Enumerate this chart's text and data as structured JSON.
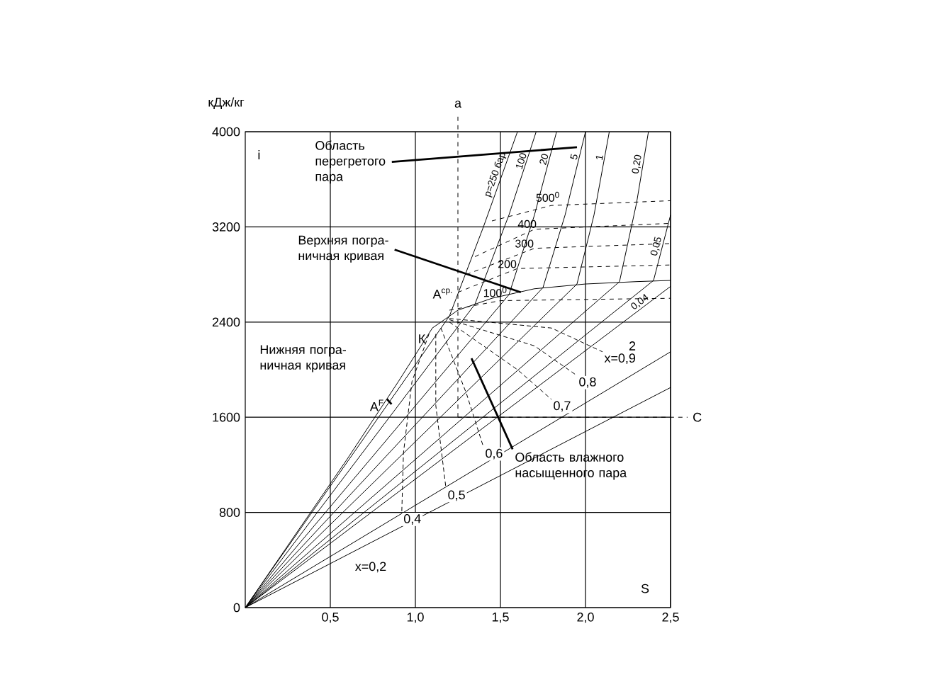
{
  "chart_data": {
    "type": "line",
    "xlabel": "S",
    "ylabel": "кДж/кг",
    "xlim": [
      0,
      2.5
    ],
    "ylim": [
      0,
      4000
    ],
    "xticks": [
      {
        "value": 0.5,
        "label": "0,5"
      },
      {
        "value": 1.0,
        "label": "1,0"
      },
      {
        "value": 1.5,
        "label": "1,5"
      },
      {
        "value": 2.0,
        "label": "2,0"
      },
      {
        "value": 2.5,
        "label": "2,5"
      }
    ],
    "yticks": [
      0,
      800,
      1600,
      2400,
      3200,
      4000
    ],
    "grid": true,
    "series": [
      {
        "color": "#000000",
        "line_style": "solid",
        "x": [
          0,
          0.6,
          0.9,
          1.1,
          1.25,
          1.45,
          1.7,
          2.0,
          2.3,
          2.5
        ],
        "values": [
          0,
          1250,
          1900,
          2350,
          2500,
          2600,
          2680,
          2720,
          2740,
          2750
        ]
      },
      {
        "name": "p=250 бар",
        "color": "#000000",
        "line_style": "solid",
        "x": [
          0,
          1.2,
          1.4,
          1.6
        ],
        "values": [
          0,
          2450,
          3200,
          4000
        ]
      },
      {
        "name": "100",
        "color": "#000000",
        "line_style": "solid",
        "x": [
          0,
          1.35,
          1.55,
          1.71
        ],
        "values": [
          0,
          2550,
          3300,
          4000
        ]
      },
      {
        "name": "20",
        "color": "#000000",
        "line_style": "solid",
        "x": [
          0,
          1.55,
          1.7,
          1.83
        ],
        "values": [
          0,
          2630,
          3300,
          4000
        ]
      },
      {
        "name": "5",
        "color": "#000000",
        "line_style": "solid",
        "x": [
          0,
          1.75,
          1.88,
          2.0
        ],
        "values": [
          0,
          2690,
          3300,
          4000
        ]
      },
      {
        "name": "1",
        "color": "#000000",
        "line_style": "solid",
        "x": [
          0,
          1.95,
          2.05,
          2.14
        ],
        "values": [
          0,
          2720,
          3300,
          4000
        ]
      },
      {
        "name": "0,20",
        "color": "#000000",
        "line_style": "solid",
        "x": [
          0,
          2.2,
          2.3,
          2.37
        ],
        "values": [
          0,
          2740,
          3400,
          4000
        ]
      },
      {
        "name": "0,05",
        "color": "#000000",
        "line_style": "solid",
        "x": [
          0,
          2.4,
          2.5
        ],
        "values": [
          0,
          2750,
          3300
        ]
      },
      {
        "name": "0,04",
        "color": "#000000",
        "line_style": "solid",
        "x": [
          0,
          2.5
        ],
        "values": [
          0,
          2700
        ]
      },
      {
        "color": "#000000",
        "line_style": "solid",
        "x": [
          0,
          2.5
        ],
        "values": [
          0,
          2150
        ]
      },
      {
        "color": "#000000",
        "line_style": "solid",
        "x": [
          0,
          2.5
        ],
        "values": [
          0,
          1850
        ]
      },
      {
        "name": "500$^{0}$",
        "color": "#000000",
        "line_style": "dashed",
        "x": [
          1.45,
          1.8,
          2.5
        ],
        "values": [
          3250,
          3380,
          3420
        ]
      },
      {
        "name": "400",
        "color": "#000000",
        "line_style": "dashed",
        "x": [
          1.35,
          1.7,
          2.5
        ],
        "values": [
          2950,
          3180,
          3230
        ]
      },
      {
        "name": "300",
        "color": "#000000",
        "line_style": "dashed",
        "x": [
          1.3,
          1.7,
          2.5
        ],
        "values": [
          2800,
          3020,
          3060
        ]
      },
      {
        "name": "200",
        "color": "#000000",
        "line_style": "dashed",
        "x": [
          1.25,
          1.6,
          2.5
        ],
        "values": [
          2650,
          2850,
          2880
        ]
      },
      {
        "name": "100$^{0}$",
        "color": "#000000",
        "line_style": "dashed",
        "x": [
          1.2,
          1.5,
          2.5
        ],
        "values": [
          2500,
          2580,
          2600
        ]
      },
      {
        "name": "0,4",
        "color": "#000000",
        "line_style": "dotted",
        "x": [
          1.08,
          0.98,
          0.93,
          0.92
        ],
        "values": [
          2300,
          1900,
          1300,
          800
        ]
      },
      {
        "name": "0,5",
        "color": "#000000",
        "line_style": "dotted",
        "x": [
          1.12,
          1.12,
          1.18
        ],
        "values": [
          2300,
          1700,
          1000
        ]
      },
      {
        "name": "0,6",
        "color": "#000000",
        "line_style": "dotted",
        "x": [
          1.15,
          1.3,
          1.4
        ],
        "values": [
          2350,
          1800,
          1350
        ]
      },
      {
        "name": "0,7",
        "color": "#000000",
        "line_style": "dotted",
        "x": [
          1.2,
          1.6,
          1.8
        ],
        "values": [
          2400,
          2000,
          1750
        ]
      },
      {
        "name": "0,8",
        "color": "#000000",
        "line_style": "dotted",
        "x": [
          1.2,
          1.7,
          1.95
        ],
        "values": [
          2420,
          2200,
          1950
        ]
      },
      {
        "name": "x=0,9",
        "color": "#000000",
        "line_style": "dotted",
        "x": [
          1.2,
          1.8,
          2.1
        ],
        "values": [
          2430,
          2350,
          2150
        ]
      }
    ],
    "ref_lines": [
      {
        "axis": "x",
        "value": 1.25,
        "label": "а",
        "line_style": "dashed"
      },
      {
        "axis": "y",
        "value": 1600,
        "label": "С",
        "line_style": "dashed"
      }
    ],
    "annotations": [
      "i",
      {
        "text": "Область перегретого пара",
        "x": 1.95,
        "y": 3870
      },
      {
        "text": "Верхняя погра-ничная кривая",
        "x": 1.62,
        "y": 2650
      },
      "Нижняя погра-ничная кривая",
      {
        "text": "Область влажного насыщенного пара",
        "x": 1.33,
        "y": 2095
      },
      "x=0,2",
      "2",
      "К",
      "A$^{ср.}$",
      {
        "text": "A$^{F}$",
        "x": 0.86,
        "y": 1710
      }
    ]
  }
}
